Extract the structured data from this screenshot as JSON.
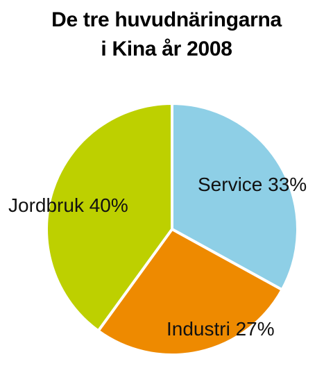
{
  "chart_data": {
    "type": "pie",
    "title_lines": [
      "De tre huvudnäringarna",
      "i Kina år 2008"
    ],
    "slices": [
      {
        "label": "Service 33%",
        "value": 33,
        "color": "#8ecfe6"
      },
      {
        "label": "Industri 27%",
        "value": 27,
        "color": "#ee8a00"
      },
      {
        "label": "Jordbruk 40%",
        "value": 40,
        "color": "#bdd000"
      }
    ],
    "start_angle_deg": 0,
    "direction": "clockwise",
    "slice_border_color": "#ffffff"
  }
}
